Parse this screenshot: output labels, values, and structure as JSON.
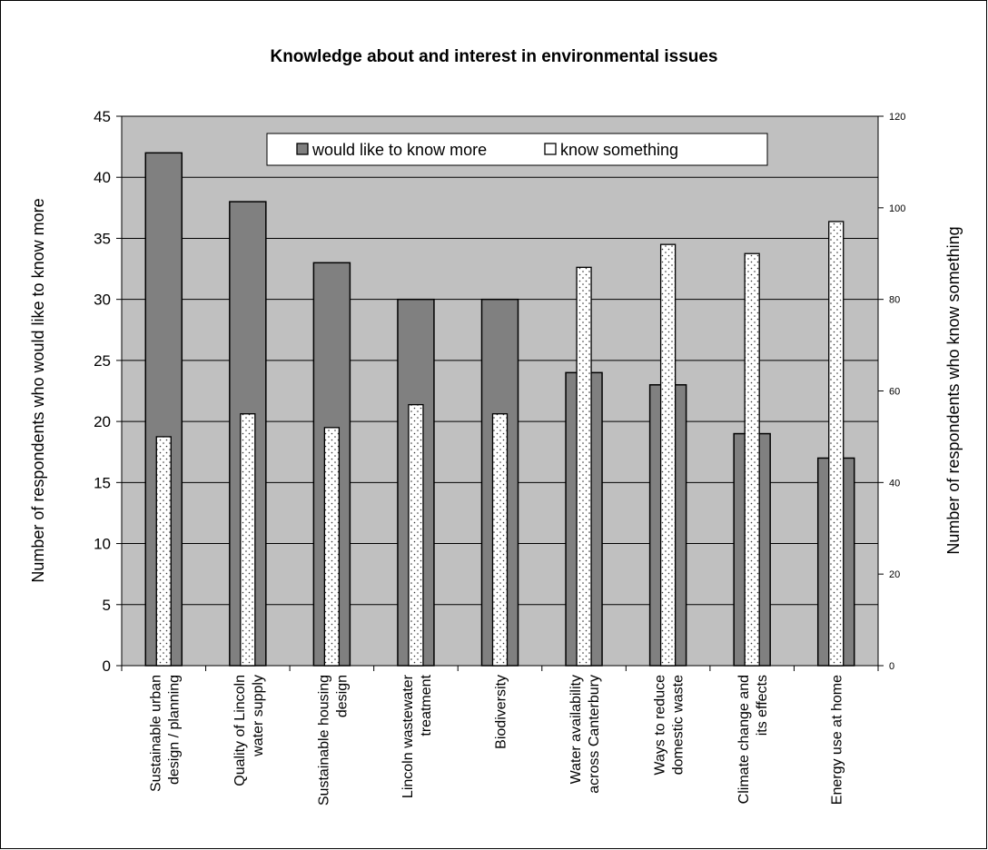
{
  "chart_data": {
    "type": "bar",
    "title": "Knowledge about and interest in environmental issues",
    "ylabel_left": "Number of respondents who would like to know more",
    "ylabel_right": "Number of respondents who know something",
    "ylim_left": [
      0,
      45
    ],
    "yticks_left": [
      "0",
      "5",
      "10",
      "15",
      "20",
      "25",
      "30",
      "35",
      "40",
      "45"
    ],
    "ylim_right": [
      0,
      120
    ],
    "yticks_right": [
      "0",
      "20",
      "40",
      "60",
      "80",
      "100",
      "120"
    ],
    "grid": true,
    "legend_position": "top-center",
    "categories": [
      [
        "Sustainable urban",
        "design / planning"
      ],
      [
        "Quality of Lincoln",
        "water supply"
      ],
      [
        "Sustainable housing",
        "design"
      ],
      [
        "Lincoln wastewater",
        "treatment"
      ],
      [
        "Biodiversity"
      ],
      [
        "Water availability",
        "across Canterbury"
      ],
      [
        "Ways to reduce",
        "domestic waste"
      ],
      [
        "Climate change and",
        "its effects"
      ],
      [
        "Energy use at home"
      ]
    ],
    "series": [
      {
        "name": "would like to know more",
        "axis": "left",
        "color": "#808080",
        "values": [
          42,
          38,
          33,
          30,
          30,
          24,
          23,
          19,
          17
        ]
      },
      {
        "name": "know something",
        "axis": "right",
        "color": "#ffffff",
        "pattern": "dotted",
        "values": [
          50,
          55,
          52,
          57,
          55,
          87,
          92,
          90,
          97
        ]
      }
    ],
    "plot_background": "#c0c0c0"
  }
}
